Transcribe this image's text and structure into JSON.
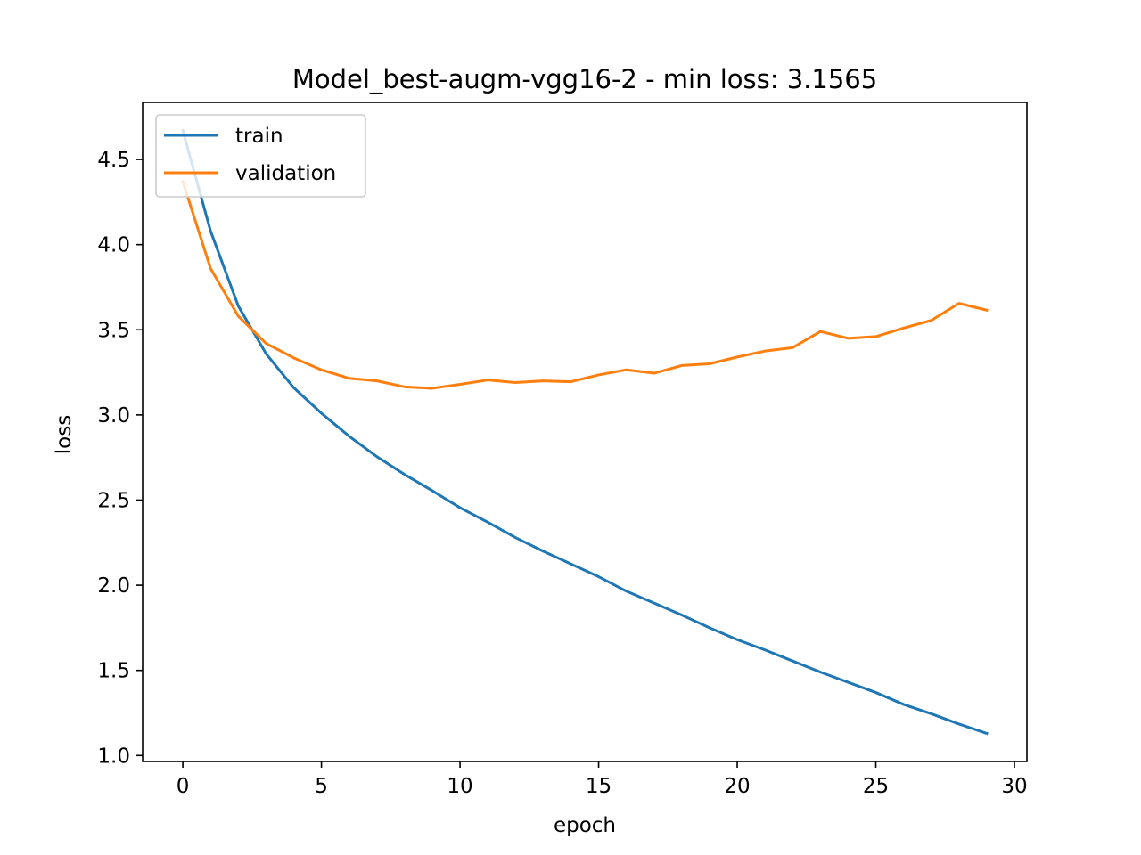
{
  "chart_data": {
    "type": "line",
    "title": "Model_best-augm-vgg16-2 - min loss: 3.1565",
    "xlabel": "epoch",
    "ylabel": "loss",
    "xlim": [
      -1.45,
      30.45
    ],
    "ylim": [
      0.965,
      4.835
    ],
    "xticks": [
      0,
      5,
      10,
      15,
      20,
      25,
      30
    ],
    "xtick_labels": [
      "0",
      "5",
      "10",
      "15",
      "20",
      "25",
      "30"
    ],
    "yticks": [
      1.0,
      1.5,
      2.0,
      2.5,
      3.0,
      3.5,
      4.0,
      4.5
    ],
    "ytick_labels": [
      "1.0",
      "1.5",
      "2.0",
      "2.5",
      "3.0",
      "3.5",
      "4.0",
      "4.5"
    ],
    "grid": false,
    "legend_position": "upper left",
    "x": [
      0,
      1,
      2,
      3,
      4,
      5,
      6,
      7,
      8,
      9,
      10,
      11,
      12,
      13,
      14,
      15,
      16,
      17,
      18,
      19,
      20,
      21,
      22,
      23,
      24,
      25,
      26,
      27,
      28,
      29
    ],
    "series": [
      {
        "name": "train",
        "color": "#1f77b4",
        "values": [
          4.67,
          4.08,
          3.64,
          3.36,
          3.16,
          3.01,
          2.875,
          2.755,
          2.65,
          2.555,
          2.455,
          2.37,
          2.28,
          2.2,
          2.125,
          2.05,
          1.965,
          1.895,
          1.825,
          1.75,
          1.68,
          1.62,
          1.555,
          1.49,
          1.43,
          1.37,
          1.3,
          1.245,
          1.185,
          1.13
        ]
      },
      {
        "name": "validation",
        "color": "#ff7f0e",
        "values": [
          4.37,
          3.86,
          3.58,
          3.42,
          3.335,
          3.265,
          3.215,
          3.2,
          3.165,
          3.1565,
          3.18,
          3.205,
          3.19,
          3.2,
          3.195,
          3.235,
          3.265,
          3.245,
          3.29,
          3.3,
          3.34,
          3.375,
          3.395,
          3.49,
          3.45,
          3.46,
          3.51,
          3.555,
          3.655,
          3.615
        ]
      }
    ]
  }
}
